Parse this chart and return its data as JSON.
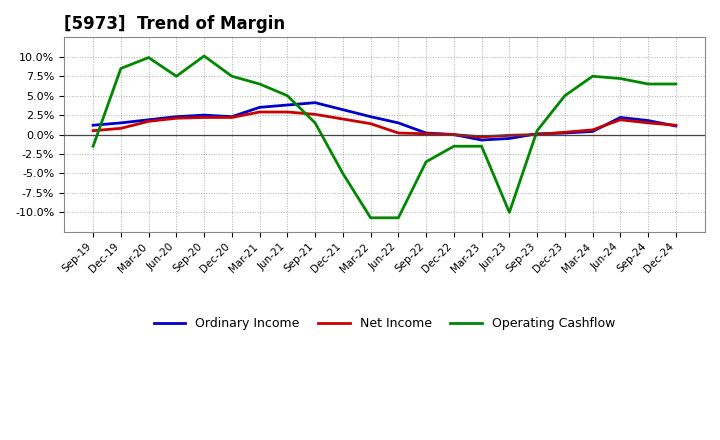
{
  "title": "[5973]  Trend of Margin",
  "x_labels": [
    "Sep-19",
    "Dec-19",
    "Mar-20",
    "Jun-20",
    "Sep-20",
    "Dec-20",
    "Mar-21",
    "Jun-21",
    "Sep-21",
    "Dec-21",
    "Mar-22",
    "Jun-22",
    "Sep-22",
    "Dec-22",
    "Mar-23",
    "Jun-23",
    "Sep-23",
    "Dec-23",
    "Mar-24",
    "Jun-24",
    "Sep-24",
    "Dec-24"
  ],
  "ordinary_income": [
    1.2,
    1.5,
    1.9,
    2.3,
    2.5,
    2.3,
    3.5,
    3.8,
    4.1,
    3.2,
    2.3,
    1.5,
    0.2,
    0.0,
    -0.7,
    -0.5,
    0.1,
    0.2,
    0.4,
    2.2,
    1.8,
    1.1
  ],
  "net_income": [
    0.5,
    0.8,
    1.7,
    2.1,
    2.2,
    2.2,
    2.9,
    2.9,
    2.6,
    2.0,
    1.4,
    0.2,
    0.1,
    0.0,
    -0.3,
    -0.1,
    0.0,
    0.3,
    0.6,
    1.9,
    1.5,
    1.2
  ],
  "operating_cashflow": [
    -1.5,
    8.5,
    9.9,
    7.5,
    10.1,
    7.5,
    6.5,
    5.0,
    1.5,
    -5.0,
    -10.7,
    -10.7,
    -3.5,
    -1.5,
    -1.5,
    -10.0,
    0.5,
    5.0,
    7.5,
    7.2,
    6.5,
    6.5
  ],
  "ylim": [
    -12.5,
    12.5
  ],
  "yticks": [
    -10.0,
    -7.5,
    -5.0,
    -2.5,
    0.0,
    2.5,
    5.0,
    7.5,
    10.0
  ],
  "line_colors": {
    "ordinary_income": "#0000CC",
    "net_income": "#CC0000",
    "operating_cashflow": "#008800"
  },
  "legend_labels": [
    "Ordinary Income",
    "Net Income",
    "Operating Cashflow"
  ],
  "background_color": "#FFFFFF",
  "plot_bg_color": "#FFFFFF",
  "grid_color": "#999999"
}
